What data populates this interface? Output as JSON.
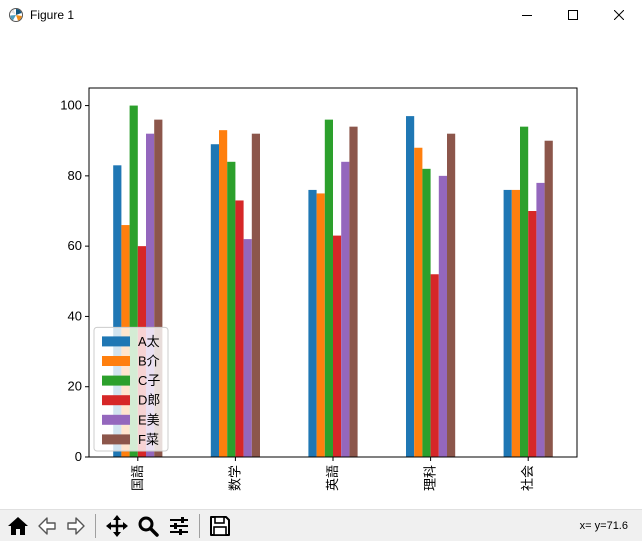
{
  "window": {
    "title": "Figure 1"
  },
  "chart_data": {
    "type": "bar",
    "categories": [
      "国語",
      "数学",
      "英語",
      "理科",
      "社会"
    ],
    "series": [
      {
        "name": "A太",
        "color": "#1f77b4",
        "values": [
          83,
          89,
          76,
          97,
          76
        ]
      },
      {
        "name": "B介",
        "color": "#ff7f0e",
        "values": [
          66,
          93,
          75,
          88,
          76
        ]
      },
      {
        "name": "C子",
        "color": "#2ca02c",
        "values": [
          100,
          84,
          96,
          82,
          94
        ]
      },
      {
        "name": "D郎",
        "color": "#d62728",
        "values": [
          60,
          73,
          63,
          52,
          70
        ]
      },
      {
        "name": "E美",
        "color": "#9467bd",
        "values": [
          92,
          62,
          84,
          80,
          78
        ]
      },
      {
        "name": "F菜",
        "color": "#8c564b",
        "values": [
          96,
          92,
          94,
          92,
          90
        ]
      }
    ],
    "yticks": [
      0,
      20,
      40,
      60,
      80,
      100
    ],
    "ylim": [
      0,
      105
    ],
    "legend_position": "lower-left",
    "grid": false
  },
  "toolbar": {
    "buttons": [
      {
        "name": "home",
        "icon": "home-icon"
      },
      {
        "name": "back",
        "icon": "back-arrow-icon"
      },
      {
        "name": "forward",
        "icon": "forward-arrow-icon"
      },
      {
        "name": "pan",
        "icon": "move-icon"
      },
      {
        "name": "zoom",
        "icon": "zoom-icon"
      },
      {
        "name": "configure-subplots",
        "icon": "sliders-icon"
      },
      {
        "name": "save",
        "icon": "save-icon"
      }
    ],
    "coords": "x= y=71.6"
  }
}
